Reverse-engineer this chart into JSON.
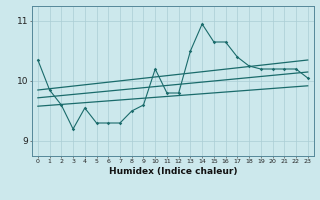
{
  "title": "",
  "xlabel": "Humidex (Indice chaleur)",
  "ylabel": "",
  "bg_color": "#cce8ec",
  "grid_color": "#aacdd4",
  "line_color": "#1a6b6b",
  "xlim": [
    -0.5,
    23.5
  ],
  "ylim": [
    8.75,
    11.25
  ],
  "yticks": [
    9,
    10,
    11
  ],
  "xticks": [
    0,
    1,
    2,
    3,
    4,
    5,
    6,
    7,
    8,
    9,
    10,
    11,
    12,
    13,
    14,
    15,
    16,
    17,
    18,
    19,
    20,
    21,
    22,
    23
  ],
  "series1_x": [
    0,
    1,
    2,
    3,
    4,
    5,
    6,
    7,
    8,
    9,
    10,
    11,
    12,
    13,
    14,
    15,
    16,
    17,
    18,
    19,
    20,
    21,
    22,
    23
  ],
  "series1_y": [
    10.35,
    9.85,
    9.6,
    9.2,
    9.55,
    9.3,
    9.3,
    9.3,
    9.5,
    9.6,
    10.2,
    9.8,
    9.8,
    10.5,
    10.95,
    10.65,
    10.65,
    10.4,
    10.25,
    10.2,
    10.2,
    10.2,
    10.2,
    10.05
  ],
  "line2_start": 9.85,
  "line2_end": 10.35,
  "line3_start": 9.72,
  "line3_end": 10.15,
  "line4_start": 9.58,
  "line4_end": 9.92
}
